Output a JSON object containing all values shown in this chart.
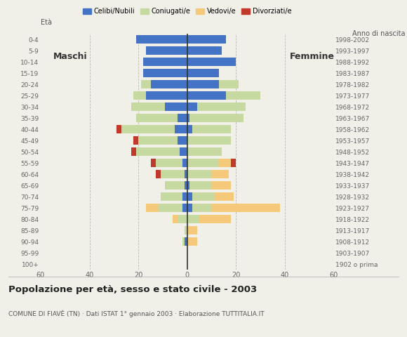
{
  "age_groups": [
    "100+",
    "95-99",
    "90-94",
    "85-89",
    "80-84",
    "75-79",
    "70-74",
    "65-69",
    "60-64",
    "55-59",
    "50-54",
    "45-49",
    "40-44",
    "35-39",
    "30-34",
    "25-29",
    "20-24",
    "15-19",
    "10-14",
    "5-9",
    "0-4"
  ],
  "birth_years": [
    "1902 o prima",
    "1903-1907",
    "1908-1912",
    "1913-1917",
    "1918-1922",
    "1923-1927",
    "1928-1932",
    "1933-1937",
    "1938-1942",
    "1943-1947",
    "1948-1952",
    "1953-1957",
    "1958-1962",
    "1963-1967",
    "1968-1972",
    "1973-1977",
    "1978-1982",
    "1983-1987",
    "1988-1992",
    "1993-1997",
    "1998-2002"
  ],
  "male": {
    "celibi": [
      0,
      0,
      1,
      0,
      0,
      2,
      2,
      1,
      1,
      2,
      3,
      4,
      5,
      4,
      9,
      17,
      15,
      18,
      18,
      17,
      21
    ],
    "coniugati": [
      0,
      0,
      1,
      1,
      4,
      10,
      9,
      8,
      10,
      11,
      18,
      16,
      22,
      17,
      14,
      5,
      4,
      0,
      0,
      0,
      0
    ],
    "vedovi": [
      0,
      0,
      0,
      0,
      2,
      5,
      0,
      0,
      0,
      0,
      0,
      0,
      0,
      0,
      0,
      0,
      0,
      0,
      0,
      0,
      0
    ],
    "divorziati": [
      0,
      0,
      0,
      0,
      0,
      0,
      0,
      0,
      2,
      2,
      2,
      2,
      2,
      0,
      0,
      0,
      0,
      0,
      0,
      0,
      0
    ]
  },
  "female": {
    "nubili": [
      0,
      0,
      0,
      0,
      0,
      2,
      2,
      1,
      0,
      0,
      0,
      0,
      2,
      1,
      4,
      16,
      13,
      13,
      20,
      14,
      16
    ],
    "coniugate": [
      0,
      0,
      0,
      0,
      5,
      8,
      9,
      9,
      10,
      13,
      14,
      18,
      16,
      22,
      20,
      14,
      8,
      0,
      0,
      0,
      0
    ],
    "vedove": [
      0,
      0,
      4,
      4,
      13,
      28,
      8,
      8,
      7,
      5,
      0,
      0,
      0,
      0,
      0,
      0,
      0,
      0,
      0,
      0,
      0
    ],
    "divorziate": [
      0,
      0,
      0,
      0,
      0,
      0,
      0,
      0,
      0,
      2,
      0,
      0,
      0,
      0,
      0,
      0,
      0,
      0,
      0,
      0,
      0
    ]
  },
  "colors": {
    "celibi": "#4472c4",
    "coniugati": "#c5d9a0",
    "vedovi": "#f5c97a",
    "divorziati": "#c0392b"
  },
  "xlim": 60,
  "title": "Popolazione per età, sesso e stato civile - 2003",
  "subtitle": "COMUNE DI FIAVÈ (TN) · Dati ISTAT 1° gennaio 2003 · Elaborazione TUTTITALIA.IT",
  "xlabel_left": "Maschi",
  "xlabel_right": "Femmine",
  "ylabel_left": "Età",
  "ylabel_right": "Anno di nascita",
  "legend_labels": [
    "Celibi/Nubili",
    "Coniugati/e",
    "Vedovi/e",
    "Divorziati/e"
  ],
  "bg_color": "#f0f0e8"
}
